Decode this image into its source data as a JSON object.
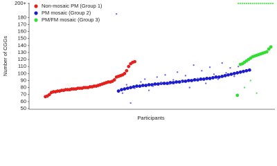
{
  "chart_data": {
    "type": "scatter",
    "y_label": "Number of CGGs",
    "x_label": "Participants",
    "ylim": [
      50,
      200
    ],
    "yticks": [
      50,
      60,
      70,
      80,
      90,
      100,
      110,
      120,
      130,
      140,
      150,
      160,
      170,
      180,
      {
        "value": 200,
        "label": "200+"
      }
    ],
    "xlim": [
      0,
      121
    ],
    "legend": "top-left",
    "series": [
      {
        "name": "Non-mosaic PM (Group 1)",
        "color": "#e3201b",
        "size": "large",
        "x": [
          8,
          9,
          10,
          11,
          12,
          13,
          14,
          15,
          16,
          17,
          18,
          19,
          20,
          21,
          22,
          23,
          24,
          25,
          26,
          27,
          28,
          29,
          30,
          31,
          32,
          33,
          34,
          35,
          36,
          37,
          38,
          39,
          40,
          41,
          42,
          43,
          44,
          45,
          46,
          47,
          48,
          49,
          50,
          51,
          52
        ],
        "values": [
          67,
          68,
          70,
          73,
          74,
          74,
          75,
          75,
          76,
          76,
          77,
          77,
          77,
          78,
          78,
          78,
          79,
          79,
          79,
          80,
          80,
          80,
          81,
          81,
          82,
          82,
          83,
          84,
          85,
          86,
          87,
          88,
          88,
          89,
          91,
          95,
          96,
          97,
          98,
          100,
          104,
          110,
          114,
          116,
          117
        ]
      },
      {
        "name": "PM mosaic (Group 2)",
        "color": "#1b1bcc",
        "size": "large",
        "x": [
          44,
          45.5,
          47,
          48.5,
          50,
          51.5,
          53,
          54.5,
          56,
          57.5,
          59,
          60.5,
          62,
          63.5,
          65,
          66.5,
          68,
          69.5,
          71,
          72.5,
          74,
          75.5,
          77,
          78.5,
          80,
          81.5,
          83,
          84.5,
          86,
          87.5,
          89,
          90.5,
          92,
          93.5,
          95,
          96.5,
          98,
          99.5,
          101,
          102.5,
          104,
          105.5,
          107,
          108.5
        ],
        "values": [
          75,
          77,
          78,
          79,
          80,
          81,
          82,
          82,
          83,
          83,
          84,
          84,
          85,
          85,
          86,
          86,
          86,
          87,
          87,
          88,
          88,
          89,
          89,
          90,
          90,
          91,
          91,
          92,
          92,
          93,
          93,
          94,
          95,
          95,
          96,
          97,
          98,
          99,
          100,
          101,
          102,
          103,
          104,
          105
        ]
      },
      {
        "color": "#6a6ae0",
        "size": "small",
        "x": [
          43,
          46,
          48,
          50,
          52,
          55,
          57,
          59,
          61,
          63,
          65,
          67,
          69,
          71,
          73,
          75,
          77,
          79,
          81,
          83,
          85,
          87,
          89,
          91,
          93,
          95,
          97,
          99,
          101,
          103
        ],
        "values": [
          185,
          72,
          84,
          58,
          79,
          88,
          92,
          76,
          82,
          95,
          87,
          98,
          85,
          91,
          102,
          88,
          97,
          80,
          112,
          93,
          104,
          86,
          109,
          99,
          92,
          115,
          101,
          108,
          96,
          110
        ]
      },
      {
        "name": "PM/FM mosaic (Group 3)",
        "color": "#33dd33",
        "size": "large",
        "x": [
          102.5,
          104,
          105,
          106,
          107,
          108,
          109,
          110,
          111,
          112,
          113,
          114,
          115,
          116,
          117,
          118,
          119
        ],
        "values": [
          69,
          113,
          114,
          116,
          118,
          120,
          122,
          124,
          125,
          126,
          127,
          128,
          129,
          130,
          131,
          135,
          138
        ]
      },
      {
        "color": "#66e066",
        "size": "small",
        "x": [
          103,
          104,
          105,
          106,
          107,
          108,
          109,
          110,
          111,
          112,
          113,
          114,
          115,
          116,
          117,
          118,
          119,
          120,
          106,
          109,
          112
        ],
        "values": [
          200,
          200,
          200,
          200,
          200,
          200,
          200,
          200,
          200,
          200,
          200,
          200,
          200,
          200,
          200,
          200,
          200,
          200,
          80,
          90,
          72
        ]
      }
    ]
  }
}
